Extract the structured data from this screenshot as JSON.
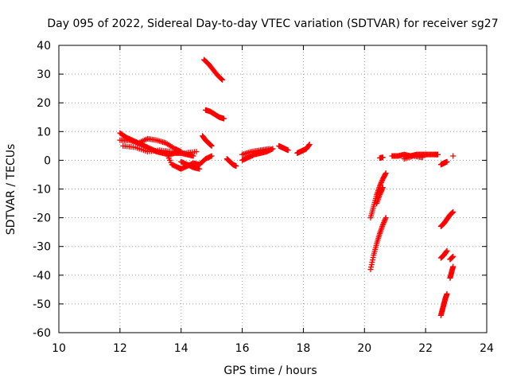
{
  "chart_data": {
    "type": "scatter",
    "title": "Day 095 of 2022, Sidereal Day-to-day VTEC variation (SDTVAR) for receiver sg27",
    "xlabel": "GPS time / hours",
    "ylabel": "SDTVAR / TECUs",
    "xlim": [
      10,
      24
    ],
    "ylim": [
      -60,
      40
    ],
    "xticks": [
      10,
      12,
      14,
      16,
      18,
      20,
      22,
      24
    ],
    "yticks": [
      -60,
      -50,
      -40,
      -30,
      -20,
      -10,
      0,
      10,
      20,
      30,
      40
    ],
    "xtick_labels": [
      "10",
      "12",
      "14",
      "16",
      "18",
      "20",
      "22",
      "24"
    ],
    "ytick_labels": [
      "-60",
      "-50",
      "-40",
      "-30",
      "-20",
      "-10",
      "0",
      "10",
      "20",
      "30",
      "40"
    ],
    "grid": true,
    "marker": "plus",
    "color": "#ff0000",
    "series": [
      {
        "name": "sdtvar",
        "segments": [
          {
            "x": [
              12.0,
              12.2,
              12.4,
              12.6,
              12.8,
              13.0,
              13.2,
              13.4,
              13.6,
              13.8,
              14.0,
              14.2,
              14.4
            ],
            "y": [
              9.5,
              8.0,
              7.0,
              6.0,
              5.0,
              4.0,
              3.0,
              2.5,
              2.0,
              2.5,
              2.5,
              2.0,
              1.5
            ]
          },
          {
            "x": [
              12.0,
              12.3,
              12.6,
              12.9,
              13.2,
              13.5,
              13.8,
              14.0
            ],
            "y": [
              7.0,
              7.0,
              6.0,
              7.5,
              7.0,
              6.0,
              4.0,
              3.0
            ]
          },
          {
            "x": [
              12.1,
              12.5,
              12.9,
              13.3,
              13.7,
              14.1,
              14.5
            ],
            "y": [
              5.0,
              4.5,
              3.0,
              3.5,
              3.0,
              2.5,
              3.0
            ]
          },
          {
            "x": [
              13.5,
              13.7,
              13.9,
              14.0,
              14.2,
              14.4,
              14.6,
              14.8,
              15.0
            ],
            "y": [
              3.0,
              -1.5,
              -2.5,
              -3.0,
              -2.0,
              -1.0,
              -1.5,
              0.5,
              1.5
            ]
          },
          {
            "x": [
              14.0,
              14.2,
              14.4,
              14.6
            ],
            "y": [
              -0.5,
              -1.5,
              -2.5,
              -3.0
            ]
          },
          {
            "x": [
              14.75,
              14.9,
              15.05,
              15.2,
              15.35
            ],
            "y": [
              35.0,
              33.5,
              31.5,
              29.5,
              28.0
            ]
          },
          {
            "x": [
              14.8,
              14.95,
              15.1,
              15.25,
              15.4
            ],
            "y": [
              17.5,
              17.0,
              16.0,
              15.0,
              14.5
            ]
          },
          {
            "x": [
              14.7,
              14.8,
              14.9,
              15.0
            ],
            "y": [
              8.5,
              7.0,
              6.0,
              5.0
            ]
          },
          {
            "x": [
              15.5,
              15.6,
              15.7,
              15.8
            ],
            "y": [
              0.5,
              -0.5,
              -1.5,
              -2.0
            ]
          },
          {
            "x": [
              16.0,
              16.2,
              16.4,
              16.6,
              16.8,
              17.0
            ],
            "y": [
              0.0,
              1.0,
              2.0,
              2.5,
              3.0,
              4.0
            ]
          },
          {
            "x": [
              16.0,
              16.3,
              16.6,
              16.9
            ],
            "y": [
              2.0,
              3.0,
              3.5,
              4.0
            ]
          },
          {
            "x": [
              17.2,
              17.3,
              17.4,
              17.5
            ],
            "y": [
              5.0,
              4.5,
              4.0,
              3.5
            ]
          },
          {
            "x": [
              17.8,
              17.9,
              18.0,
              18.1,
              18.2
            ],
            "y": [
              2.5,
              3.0,
              3.5,
              4.0,
              5.5
            ]
          },
          {
            "x": [
              20.5,
              20.6
            ],
            "y": [
              0.8,
              1.0
            ]
          },
          {
            "x": [
              20.9,
              21.1,
              21.3,
              21.5,
              21.7,
              21.9,
              22.1,
              22.3,
              22.4
            ],
            "y": [
              1.5,
              1.5,
              2.0,
              1.5,
              2.0,
              2.0,
              2.0,
              2.0,
              2.0
            ]
          },
          {
            "x": [
              21.3,
              21.6,
              21.9
            ],
            "y": [
              0.5,
              1.5,
              1.0
            ]
          },
          {
            "x": [
              20.2,
              20.3,
              20.4,
              20.5,
              20.6,
              20.7
            ],
            "y": [
              -20.0,
              -16.0,
              -12.0,
              -9.0,
              -6.5,
              -4.5
            ]
          },
          {
            "x": [
              20.2,
              20.3,
              20.4,
              20.5,
              20.6,
              20.7
            ],
            "y": [
              -38.0,
              -33.0,
              -29.0,
              -25.5,
              -22.5,
              -20.0
            ]
          },
          {
            "x": [
              20.4,
              20.5,
              20.6
            ],
            "y": [
              -15.0,
              -12.0,
              -9.5
            ]
          },
          {
            "x": [
              22.5,
              22.6,
              22.7
            ],
            "y": [
              -1.5,
              -1.0,
              -0.5
            ]
          },
          {
            "x": [
              22.9
            ],
            "y": [
              1.5
            ]
          },
          {
            "x": [
              22.5,
              22.6,
              22.7,
              22.8,
              22.9
            ],
            "y": [
              -23.0,
              -22.0,
              -20.5,
              -19.0,
              -18.0
            ]
          },
          {
            "x": [
              22.5,
              22.6,
              22.7
            ],
            "y": [
              -34.0,
              -33.0,
              -31.5
            ]
          },
          {
            "x": [
              22.8,
              22.9
            ],
            "y": [
              -34.5,
              -33.5
            ]
          },
          {
            "x": [
              22.8,
              22.85,
              22.9
            ],
            "y": [
              -41.0,
              -39.0,
              -37.0
            ]
          },
          {
            "x": [
              22.5,
              22.55,
              22.6,
              22.65,
              22.7
            ],
            "y": [
              -54.0,
              -52.0,
              -50.0,
              -48.0,
              -46.5
            ]
          }
        ]
      }
    ]
  }
}
